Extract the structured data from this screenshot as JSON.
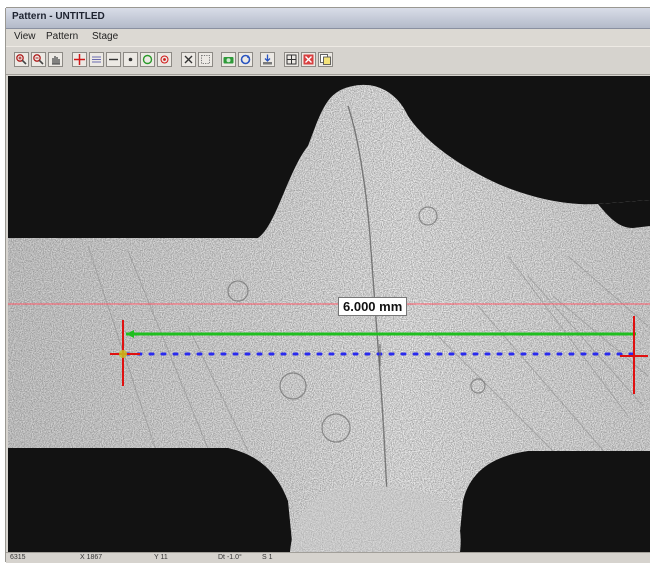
{
  "window": {
    "title": "Pattern - UNTITLED"
  },
  "menu": {
    "items": [
      "View",
      "Pattern",
      "Stage"
    ]
  },
  "toolbar": {
    "buttons": [
      "zoom-in-icon",
      "zoom-out-icon",
      "pan-hand-icon",
      "red-crosshair-icon",
      "horizontal-line-icon",
      "minus-icon",
      "point-icon",
      "circle-icon",
      "center-point-icon",
      "cross-icon",
      "dotted-square-icon",
      "camera-icon",
      "rotate-icon",
      "stage-icon",
      "grid-icon",
      "delete-icon",
      "copy-icon"
    ]
  },
  "viewport": {
    "measurement_label": "6.000 mm",
    "colors": {
      "measure_line": "#1fbf1f",
      "dotted_line": "#2a2aee",
      "reference_line": "#ff5a6a",
      "markers": "#e01010"
    }
  },
  "statusbar": {
    "items": [
      "6315",
      "X 1867",
      "Y 11",
      "Dt -1.0°",
      "S 1"
    ]
  }
}
